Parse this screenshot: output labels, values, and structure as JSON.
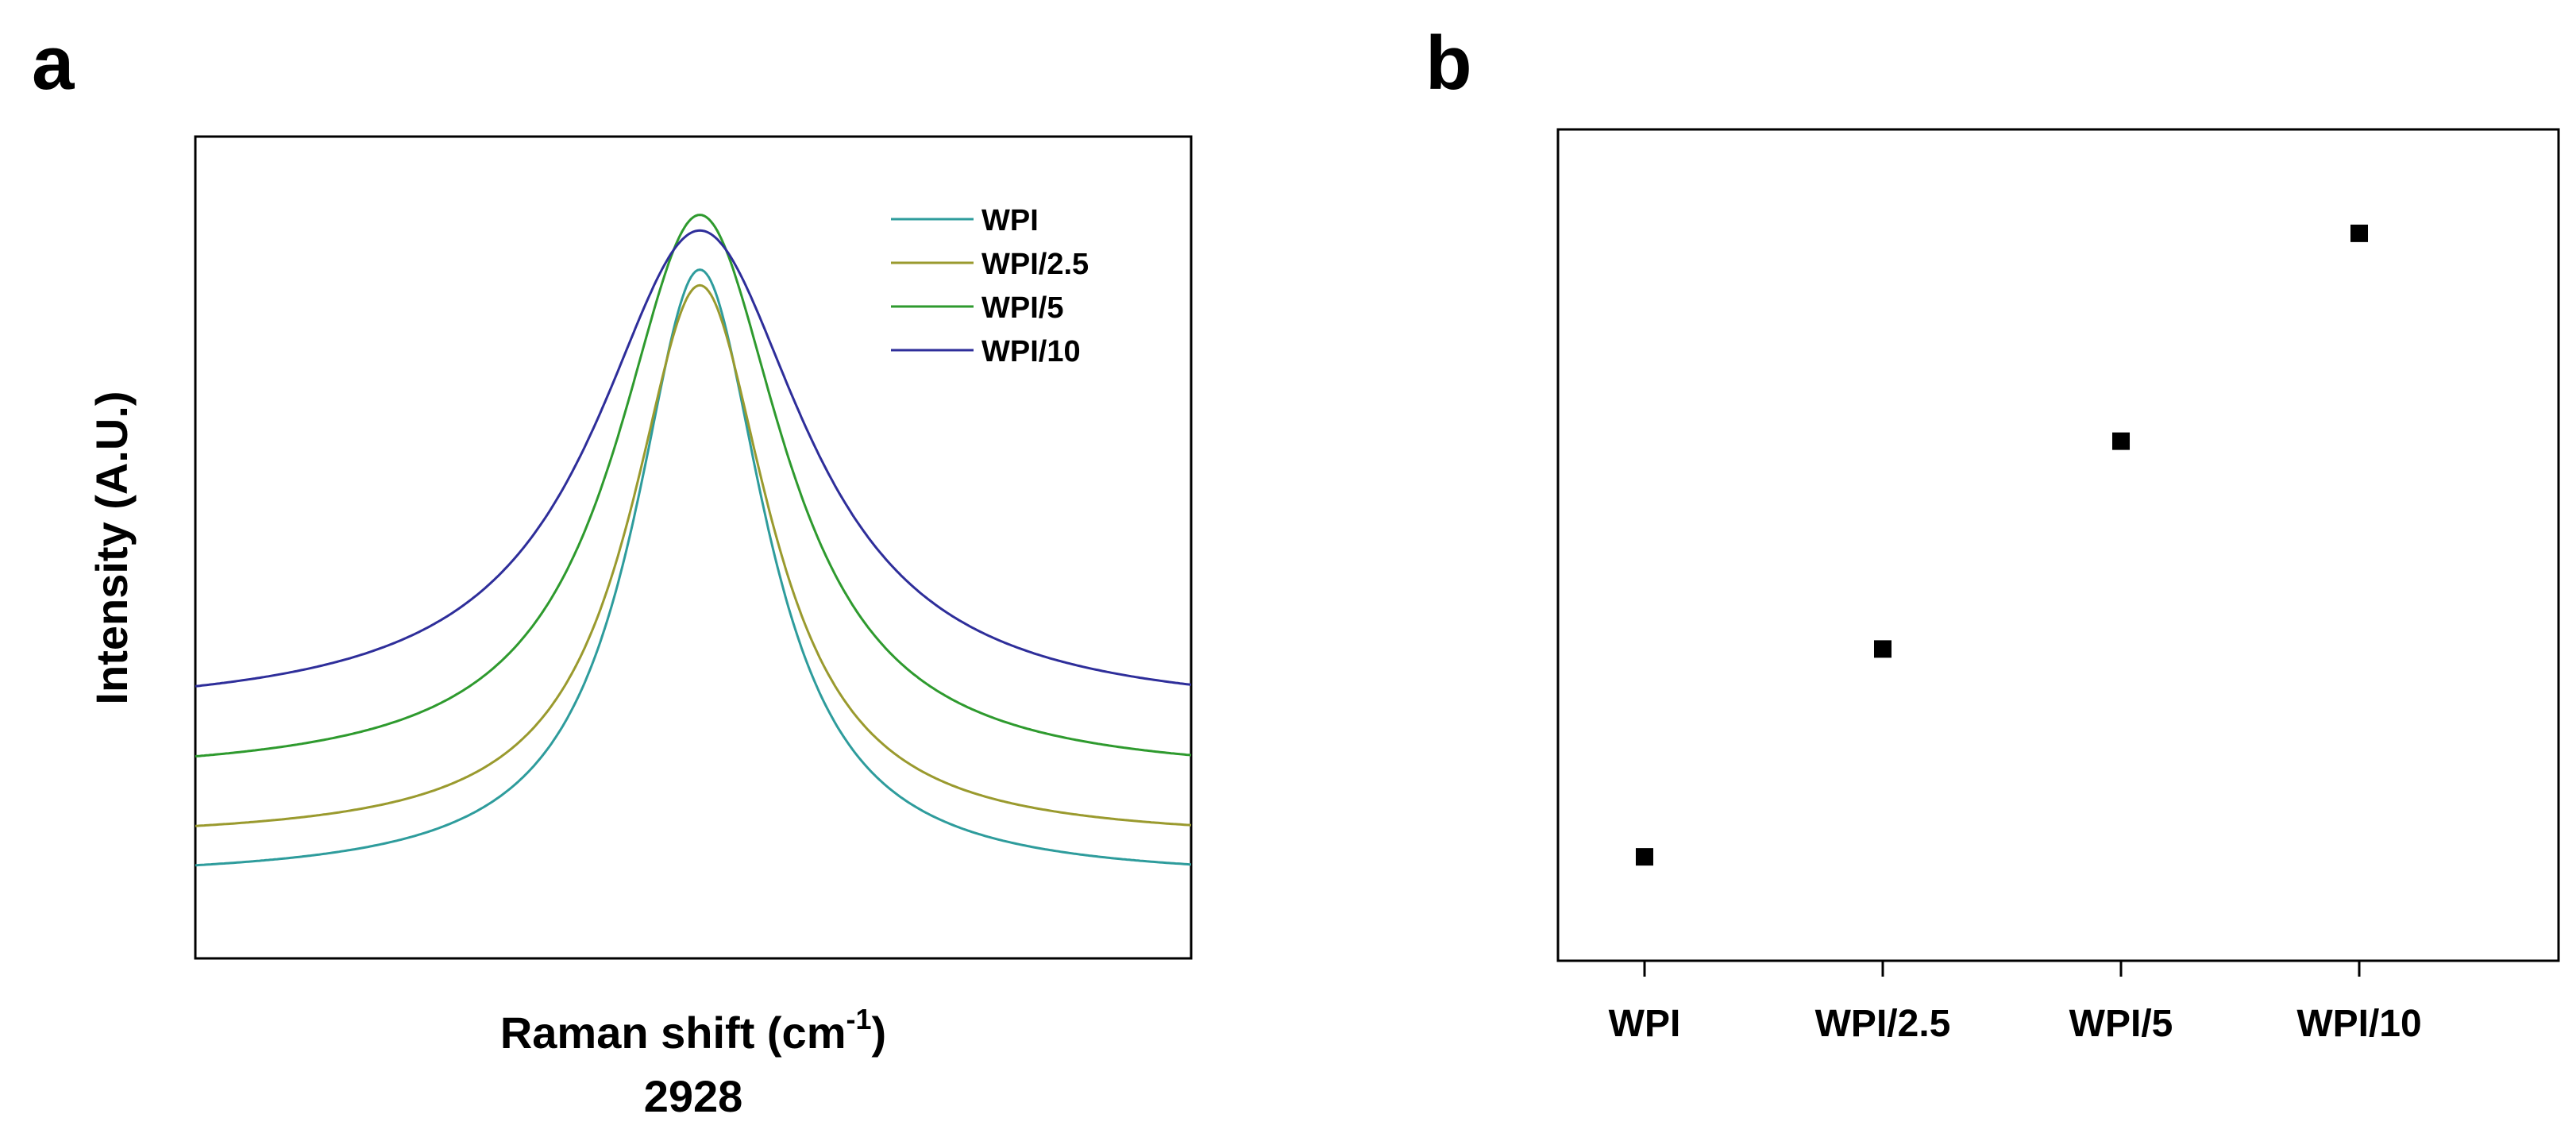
{
  "chart_data": [
    {
      "panel": "a",
      "type": "line",
      "title": "",
      "xlabel": "Raman shift (cm",
      "xlabel_sup": "-1",
      "xlabel_tail": ")",
      "xlabel_line2": "2928",
      "ylabel": "Intensity (A.U.)",
      "xlim": [
        2700,
        3150
      ],
      "ylim": [
        0,
        1.05
      ],
      "grid": false,
      "legend": "top-right",
      "peak_center": 2928,
      "series": [
        {
          "name": "WPI",
          "color": "#2e9c9c",
          "baseline": 0.1,
          "height": 0.78,
          "width": 36
        },
        {
          "name": "WPI/2.5",
          "color": "#9a9a2e",
          "baseline": 0.15,
          "height": 0.71,
          "width": 38
        },
        {
          "name": "WPI/5",
          "color": "#2e9a2e",
          "baseline": 0.23,
          "height": 0.72,
          "width": 46
        },
        {
          "name": "WPI/10",
          "color": "#2e2e9a",
          "baseline": 0.31,
          "height": 0.62,
          "width": 58
        }
      ]
    },
    {
      "panel": "b",
      "type": "scatter",
      "title": "",
      "xlabel": "",
      "ylabel": "",
      "categories": [
        "WPI",
        "WPI/2.5",
        "WPI/5",
        "WPI/10"
      ],
      "values": [
        1,
        2,
        3,
        4
      ],
      "ylim": [
        0.5,
        4.5
      ],
      "grid": false,
      "marker": "square",
      "marker_color": "#000000"
    }
  ]
}
